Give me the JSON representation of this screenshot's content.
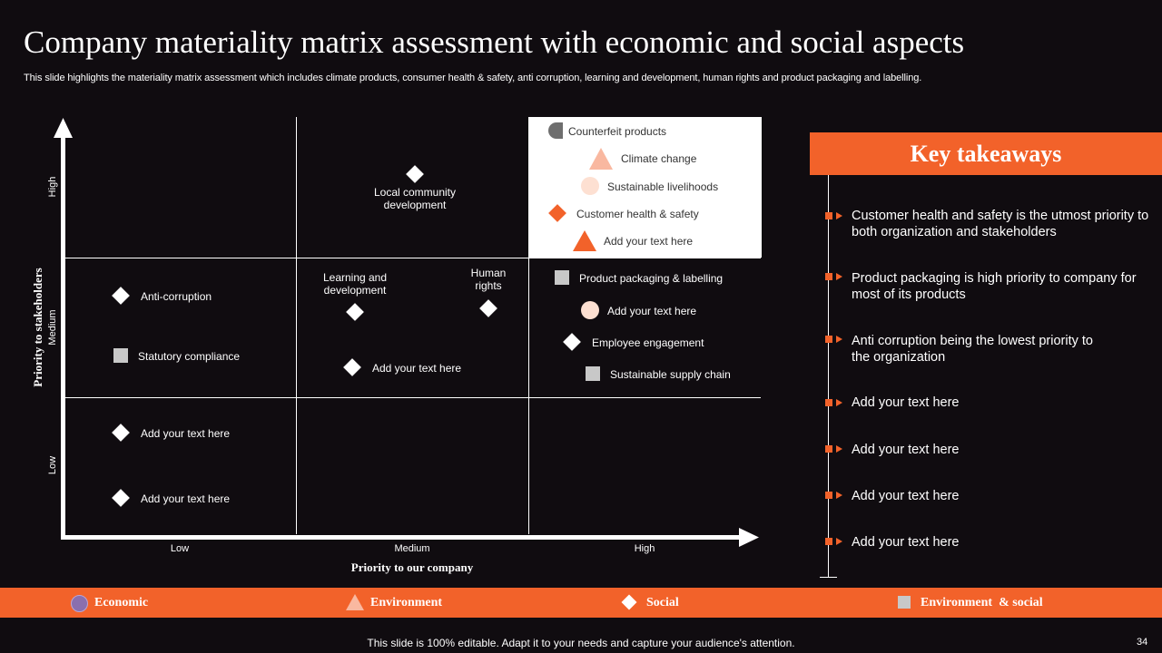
{
  "slide": {
    "title": "Company materiality matrix assessment with economic and social aspects",
    "subtitle": "This slide highlights the materiality matrix assessment which includes climate products, consumer health & safety, anti corruption, learning and development, human rights and product packaging and labelling.",
    "footer": "This slide is 100% editable. Adapt it to your needs and capture your audience's attention.",
    "page_number": "34"
  },
  "matrix": {
    "y_axis_title": "Priority to stakeholders",
    "x_axis_title": "Priority to our company",
    "y_ticks": [
      "High",
      "Medium",
      "Low"
    ],
    "x_ticks": [
      "Low",
      "Medium",
      "High"
    ],
    "items": {
      "local_community": "Local community development",
      "learning": "Learning and development",
      "human_rights": "Human rights",
      "anti_corruption": "Anti-corruption",
      "statutory": "Statutory compliance",
      "mid_add": "Add your text here",
      "low_add_1": "Add your text here",
      "low_add_2": "Add your text here",
      "counterfeit": "Counterfeit products",
      "climate": "Climate change",
      "livelihoods": "Sustainable livelihoods",
      "health_safety": "Customer health & safety",
      "high_add": "Add your text here",
      "packaging": "Product packaging & labelling",
      "hm_add": "Add your text here",
      "engagement": "Employee engagement",
      "supply_chain": "Sustainable supply chain"
    }
  },
  "takeaways": {
    "header": "Key takeaways",
    "items": [
      "Customer health and safety is the utmost priority to both organization and stakeholders",
      "Product packaging is high priority to company for most of its products",
      "Anti corruption being the lowest priority to the organization",
      "Add your text here",
      "Add your text here",
      "Add your text here",
      "Add your text here"
    ]
  },
  "legend": {
    "economic": "Economic",
    "environment": "Environment",
    "social": "Social",
    "env_social": "Environment  & social"
  },
  "colors": {
    "accent": "#f2622a",
    "background": "#100c10",
    "peach": "#fde0d2",
    "economic": "#8a6fae"
  }
}
